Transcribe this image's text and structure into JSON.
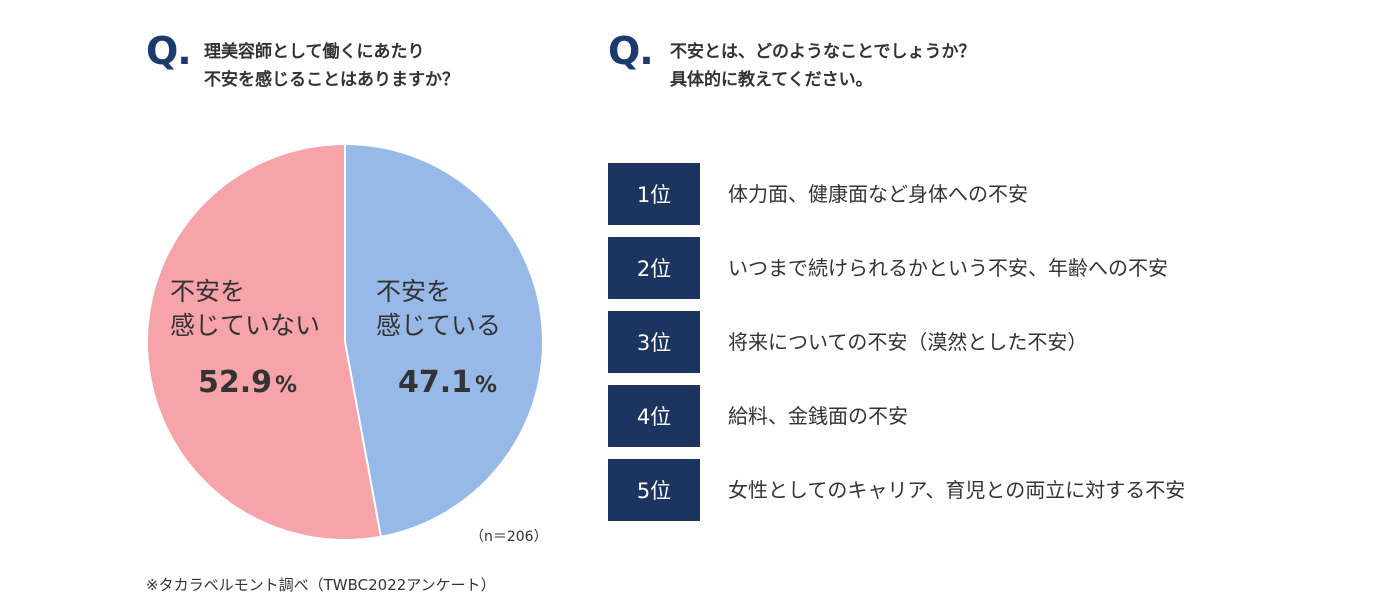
{
  "q1": {
    "mark": "Q.",
    "line1": "理美容師として働くにあたり",
    "line2": "不安を感じることはありますか？"
  },
  "q2": {
    "mark": "Q.",
    "line1": "不安とは、どのようなことでしょうか？",
    "line2": "具体的に教えてください。"
  },
  "chart_data": {
    "type": "pie",
    "slices": [
      {
        "label_line1": "不安を",
        "label_line2": "感じている",
        "value": 47.1,
        "value_text": "47.1",
        "unit": "%",
        "color": "#97b9e8"
      },
      {
        "label_line1": "不安を",
        "label_line2": "感じていない",
        "value": 52.9,
        "value_text": "52.9",
        "unit": "%",
        "color": "#f6a3aa"
      }
    ],
    "start": "12 o'clock, clockwise"
  },
  "n_note": "（n＝206）",
  "source": "※タカラベルモント調べ（TWBC2022アンケート）",
  "ranking": [
    {
      "rank": "1位",
      "text": "体力面、健康面など身体への不安"
    },
    {
      "rank": "2位",
      "text": "いつまで続けられるかという不安、年齢への不安"
    },
    {
      "rank": "3位",
      "text": "将来についての不安（漠然とした不安）"
    },
    {
      "rank": "4位",
      "text": "給料、金銭面の不安"
    },
    {
      "rank": "5位",
      "text": "女性としてのキャリア、育児との両立に対する不安"
    }
  ],
  "colors": {
    "navy": "#1b3560",
    "blue": "#97b9e8",
    "pink": "#f6a3aa"
  }
}
